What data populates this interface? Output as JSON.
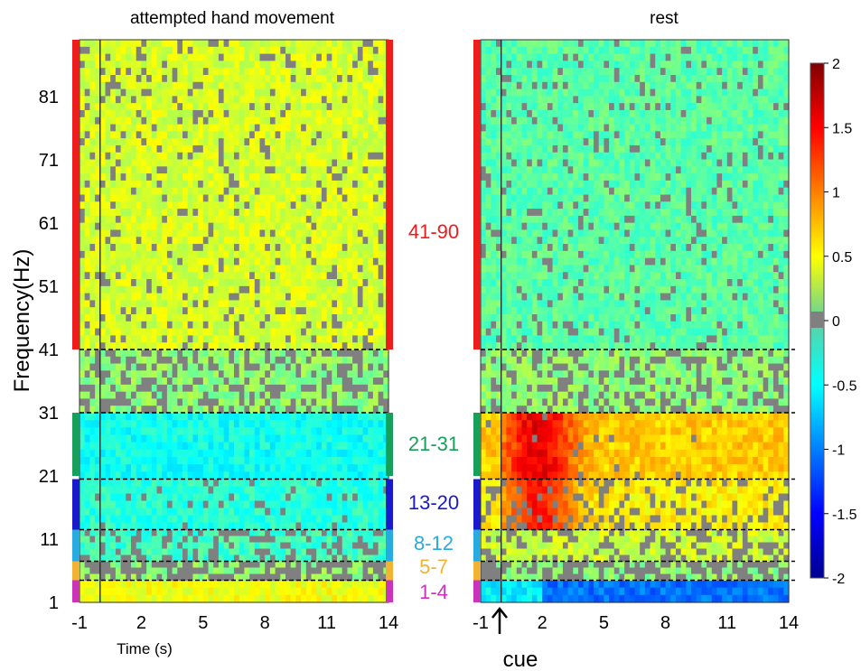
{
  "chart_data": {
    "type": "heatmap",
    "colormap": "jet",
    "color_range": [
      -2,
      2
    ],
    "nonsignificant_color": "#808080",
    "x_ticks": [
      "-1",
      "2",
      "5",
      "8",
      "11",
      "14"
    ],
    "xlim": [
      -1,
      14
    ],
    "xlabel": "Time (s)",
    "y_ticks": [
      "1",
      "11",
      "21",
      "31",
      "41",
      "51",
      "61",
      "71",
      "81"
    ],
    "ylim": [
      1,
      90
    ],
    "ylabel": "Frequency(Hz)",
    "colorbar_ticks": [
      "2",
      "1.5",
      "1",
      "0.5",
      "0",
      "-0.5",
      "-1",
      "-1.5",
      "-2"
    ],
    "cue_label": "cue",
    "cue_time": 0,
    "band_boundaries": [
      4.5,
      7.5,
      12.5,
      20.5,
      31,
      41
    ],
    "bands": [
      {
        "label": "41-90",
        "low": 41,
        "high": 90,
        "color": "#ee1c1c"
      },
      {
        "label": "21-31",
        "low": 21,
        "high": 31,
        "color": "#17a05a"
      },
      {
        "label": "13-20",
        "low": 13,
        "high": 20,
        "color": "#1a1acc"
      },
      {
        "label": "8-12",
        "low": 8,
        "high": 12,
        "color": "#29aae1"
      },
      {
        "label": "5-7",
        "low": 5,
        "high": 7,
        "color": "#f2b233"
      },
      {
        "label": "1-4",
        "low": 1,
        "high": 4,
        "color": "#cc33bb"
      }
    ],
    "panels": [
      {
        "title": "attempted hand movement",
        "bands_mean_value": [
          {
            "band": "41-90",
            "value": 0.35,
            "nonsig_fraction": 0.12
          },
          {
            "band": "31-41",
            "value": 0.05,
            "nonsig_fraction": 0.35
          },
          {
            "band": "21-31",
            "value": -0.45,
            "nonsig_fraction": 0.0
          },
          {
            "band": "13-20",
            "value": -0.35,
            "nonsig_fraction": 0.05
          },
          {
            "band": "8-12",
            "value": -0.25,
            "nonsig_fraction": 0.3
          },
          {
            "band": "5-7",
            "value": 0.05,
            "nonsig_fraction": 0.55
          },
          {
            "band": "1-4",
            "value": 0.45,
            "nonsig_fraction": 0.0
          }
        ]
      },
      {
        "title": "rest",
        "bands_mean_value": [
          {
            "band": "41-90",
            "value": -0.15,
            "nonsig_fraction": 0.1
          },
          {
            "band": "31-41",
            "value": 0.05,
            "nonsig_fraction": 0.3
          },
          {
            "band": "21-31",
            "value": 0.7,
            "nonsig_fraction": 0.02
          },
          {
            "band": "13-20",
            "value": 0.55,
            "nonsig_fraction": 0.2
          },
          {
            "band": "8-12",
            "value": 0.3,
            "nonsig_fraction": 0.3
          },
          {
            "band": "5-7",
            "value": 0.05,
            "nonsig_fraction": 0.5
          },
          {
            "band": "1-4",
            "value": -0.55,
            "nonsig_fraction": 0.0
          }
        ]
      }
    ]
  }
}
